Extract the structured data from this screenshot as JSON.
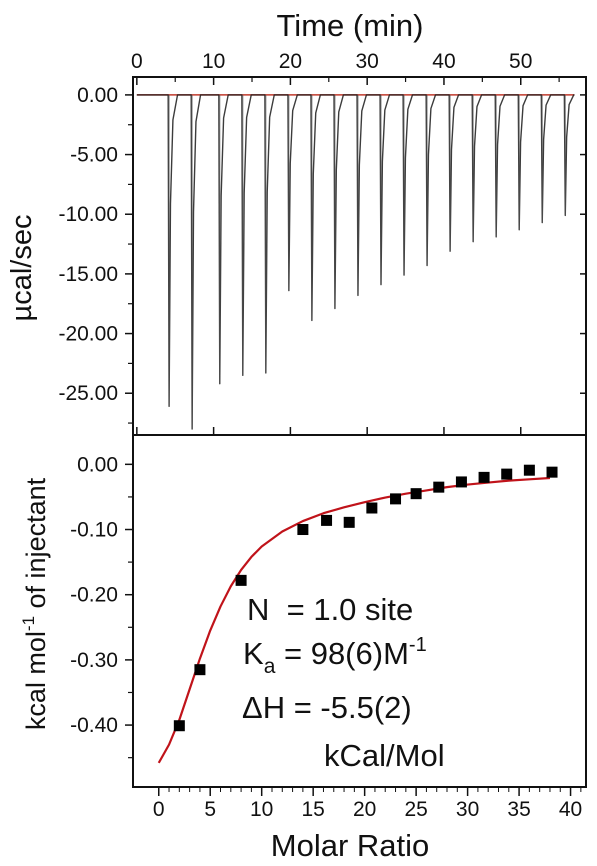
{
  "chart_data": [
    {
      "type": "line",
      "panel": "top",
      "xlabel": "Time (min)",
      "ylabel": "µcal/sec",
      "xlim": [
        -0.5,
        58.5
      ],
      "ylim": [
        -28.5,
        1.5
      ],
      "xticks": [
        "0",
        "10",
        "20",
        "30",
        "40",
        "50"
      ],
      "xtick_values": [
        0,
        10,
        20,
        30,
        40,
        50
      ],
      "yticks": [
        "0.00",
        "-5.00",
        "-10.00",
        "-15.00",
        "-20.00",
        "-25.00"
      ],
      "ytick_values": [
        0,
        -5,
        -10,
        -15,
        -20,
        -25
      ],
      "baseline": 0,
      "injection_times": [
        4.2,
        7.2,
        10.8,
        13.8,
        16.8,
        19.8,
        22.8,
        25.8,
        28.8,
        31.8,
        34.8,
        37.8,
        40.8,
        43.8,
        46.8,
        49.8,
        52.8,
        55.8
      ],
      "peak_minima": [
        -26.1,
        -28.0,
        -24.2,
        -23.5,
        -23.3,
        -16.4,
        -18.9,
        -17.9,
        -16.8,
        -15.9,
        -15.1,
        -14.3,
        -13.1,
        -12.3,
        -11.9,
        -11.3,
        -10.7,
        -10.1
      ],
      "colors": {
        "trace": "#1a1a1a",
        "baseline": "#c0392b"
      }
    },
    {
      "type": "scatter",
      "panel": "bottom",
      "xlabel": "Molar Ratio",
      "ylabel": "kcal mol⁻¹ of injectant",
      "xlim": [
        -2.5,
        41.5
      ],
      "ylim": [
        -0.495,
        0.045
      ],
      "xticks": [
        "0",
        "5",
        "10",
        "15",
        "20",
        "25",
        "30",
        "35",
        "40"
      ],
      "xtick_values": [
        0,
        5,
        10,
        15,
        20,
        25,
        30,
        35,
        40
      ],
      "yticks": [
        "0.00",
        "-0.10",
        "-0.20",
        "-0.30",
        "-0.40"
      ],
      "ytick_values": [
        0,
        -0.1,
        -0.2,
        -0.3,
        -0.4
      ],
      "points": {
        "x": [
          2.0,
          4.0,
          8.0,
          14.0,
          16.3,
          18.5,
          20.7,
          23.0,
          25.0,
          27.2,
          29.4,
          31.6,
          33.8,
          36.0,
          38.2
        ],
        "y": [
          -0.401,
          -0.315,
          -0.178,
          -0.1,
          -0.086,
          -0.089,
          -0.067,
          -0.053,
          -0.045,
          -0.035,
          -0.027,
          -0.02,
          -0.015,
          -0.009,
          -0.012
        ]
      },
      "fit": {
        "x": [
          0,
          1,
          2,
          3,
          4,
          5,
          6,
          7,
          8,
          9,
          10,
          12,
          14,
          16,
          18,
          20,
          22,
          24,
          26,
          28,
          30,
          32,
          34,
          36,
          38
        ],
        "y": [
          -0.458,
          -0.43,
          -0.392,
          -0.345,
          -0.298,
          -0.255,
          -0.218,
          -0.187,
          -0.162,
          -0.142,
          -0.126,
          -0.103,
          -0.087,
          -0.075,
          -0.066,
          -0.058,
          -0.051,
          -0.045,
          -0.04,
          -0.035,
          -0.031,
          -0.028,
          -0.025,
          -0.023,
          -0.021
        ]
      },
      "colors": {
        "marker": "#000000",
        "fit": "#c0131a"
      },
      "annotations": {
        "n_line": "N  = 1.0 site",
        "ka_prefix": "K",
        "ka_sub": "a",
        "ka_value": " = 98(6)M",
        "ka_sup": "-1",
        "dh_line": "ΔH = -5.5(2)",
        "unit_line": "kCal/Mol"
      }
    }
  ],
  "top_ylabel": "µcal/sec",
  "bottom_ylabel_main": "kcal mol",
  "bottom_ylabel_sup": "-1",
  "bottom_ylabel_tail": " of injectant"
}
